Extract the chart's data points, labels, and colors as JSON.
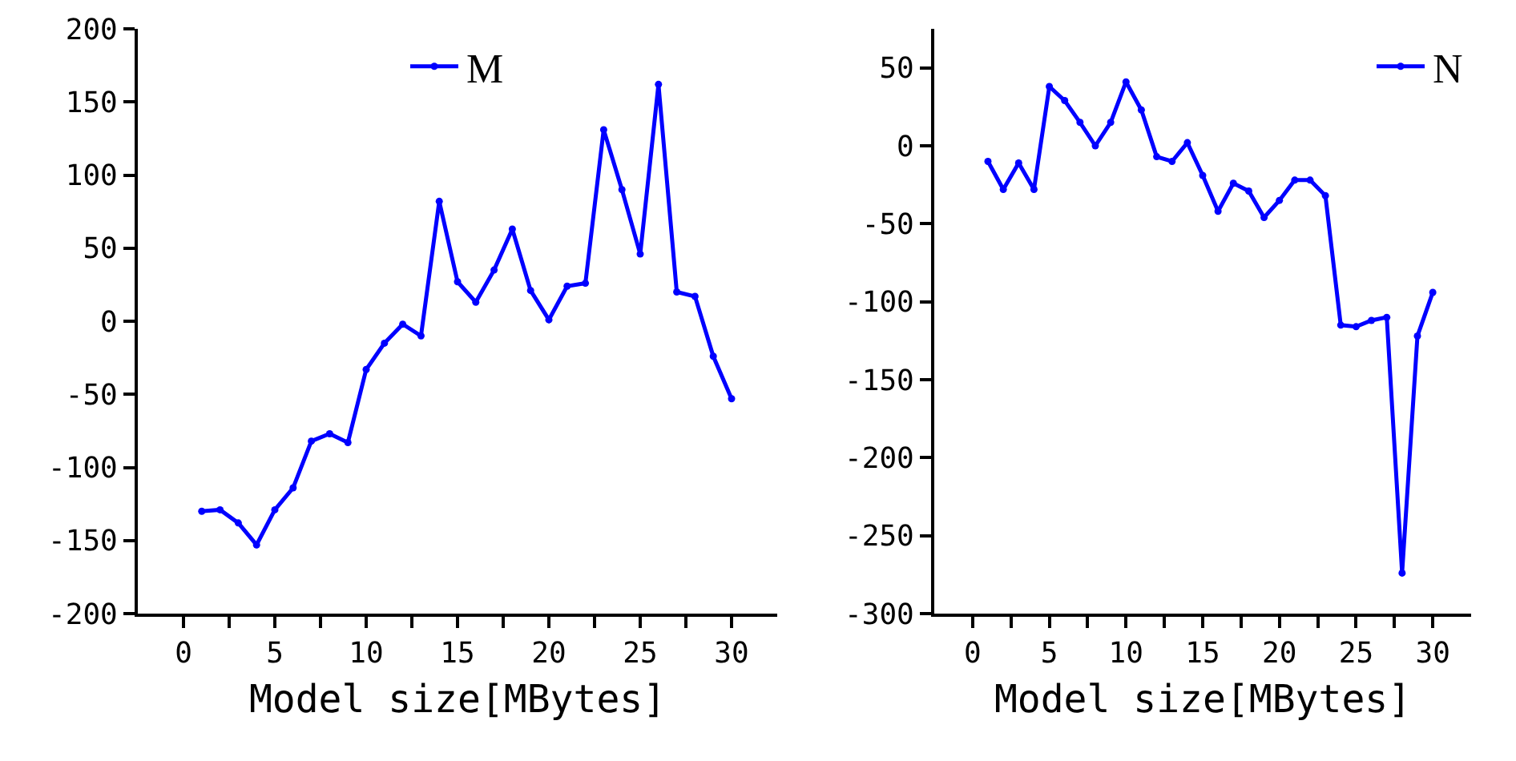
{
  "chart_data": [
    {
      "type": "line",
      "xlabel": "Model size[MBytes]",
      "x": [
        1,
        2,
        3,
        4,
        5,
        6,
        7,
        8,
        9,
        10,
        11,
        12,
        13,
        14,
        15,
        16,
        17,
        18,
        19,
        20,
        21,
        22,
        23,
        24,
        25,
        26,
        27,
        28,
        29,
        30
      ],
      "series": [
        {
          "name": "M",
          "color": "#0000ff",
          "values": [
            -130,
            -129,
            -138,
            -153,
            -129,
            -114,
            -82,
            -77,
            -83,
            -33,
            -15,
            -2,
            -10,
            82,
            27,
            13,
            35,
            63,
            21,
            1,
            24,
            26,
            131,
            90,
            46,
            162,
            20,
            17,
            -24,
            -53
          ]
        }
      ],
      "xlim": [
        -2.5,
        32.5
      ],
      "xticks": [
        0,
        {
          "value": 2.5,
          "label": null
        },
        5,
        {
          "value": 7.5,
          "label": null
        },
        10,
        {
          "value": 12.5,
          "label": null
        },
        15,
        {
          "value": 17.5,
          "label": null
        },
        20,
        {
          "value": 22.5,
          "label": null
        },
        25,
        {
          "value": 27.5,
          "label": null
        },
        30
      ],
      "ylim": [
        -200,
        200
      ],
      "yticks": [
        -200,
        -150,
        -100,
        -50,
        0,
        50,
        100,
        150,
        200
      ],
      "grid": false,
      "legend": "top",
      "marker": "circle",
      "line_style": "solid"
    },
    {
      "type": "line",
      "xlabel": "Model size[MBytes]",
      "x": [
        1,
        2,
        3,
        4,
        5,
        6,
        7,
        8,
        9,
        10,
        11,
        12,
        13,
        14,
        15,
        16,
        17,
        18,
        19,
        20,
        21,
        22,
        23,
        24,
        25,
        26,
        27,
        28,
        29,
        30
      ],
      "series": [
        {
          "name": "N",
          "color": "#0000ff",
          "values": [
            -10,
            -28,
            -11,
            -28,
            38,
            29,
            15,
            0,
            15,
            41,
            23,
            -7,
            -10,
            2,
            -19,
            -42,
            -24,
            -29,
            -46,
            -35,
            -22,
            -22,
            -32,
            -115,
            -116,
            -112,
            -110,
            -274,
            -122,
            -94
          ]
        }
      ],
      "xlim": [
        -2.5,
        32.5
      ],
      "xticks": [
        0,
        {
          "value": 2.5,
          "label": null
        },
        5,
        {
          "value": 7.5,
          "label": null
        },
        10,
        {
          "value": 12.5,
          "label": null
        },
        15,
        {
          "value": 17.5,
          "label": null
        },
        20,
        {
          "value": 22.5,
          "label": null
        },
        25,
        {
          "value": 27.5,
          "label": null
        },
        30
      ],
      "ylim": [
        -300,
        75
      ],
      "yticks": [
        -300,
        -250,
        -200,
        -150,
        -100,
        -50,
        0,
        50
      ],
      "grid": false,
      "legend": "top right",
      "marker": "circle",
      "line_style": "solid"
    }
  ]
}
